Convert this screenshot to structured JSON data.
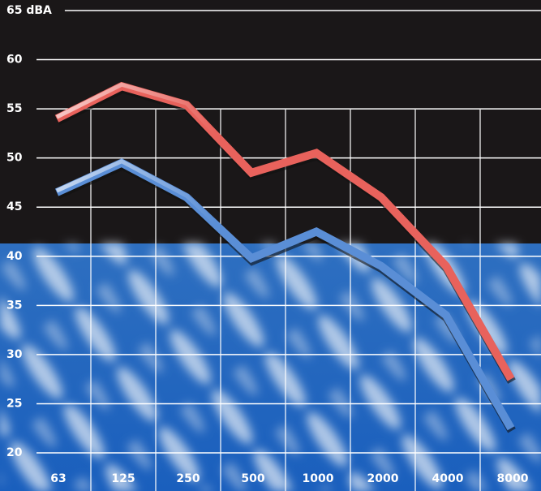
{
  "chart_data": {
    "type": "line",
    "categories": [
      "63",
      "125",
      "250",
      "500",
      "1000",
      "2000",
      "4000",
      "8000"
    ],
    "series": [
      {
        "color": "#e8625c",
        "values": [
          54,
          57.3,
          55.4,
          48.5,
          50.5,
          46,
          39,
          27.5
        ]
      },
      {
        "color": "#5a8ed6",
        "values": [
          46.5,
          49.5,
          46,
          39.8,
          42.5,
          39,
          34,
          22.5
        ]
      }
    ],
    "ylim": [
      20,
      65
    ],
    "yticks": [
      20,
      25,
      30,
      35,
      40,
      45,
      50,
      55,
      60,
      {
        "value": 65,
        "label": "65 dBA"
      }
    ],
    "grid": true
  }
}
